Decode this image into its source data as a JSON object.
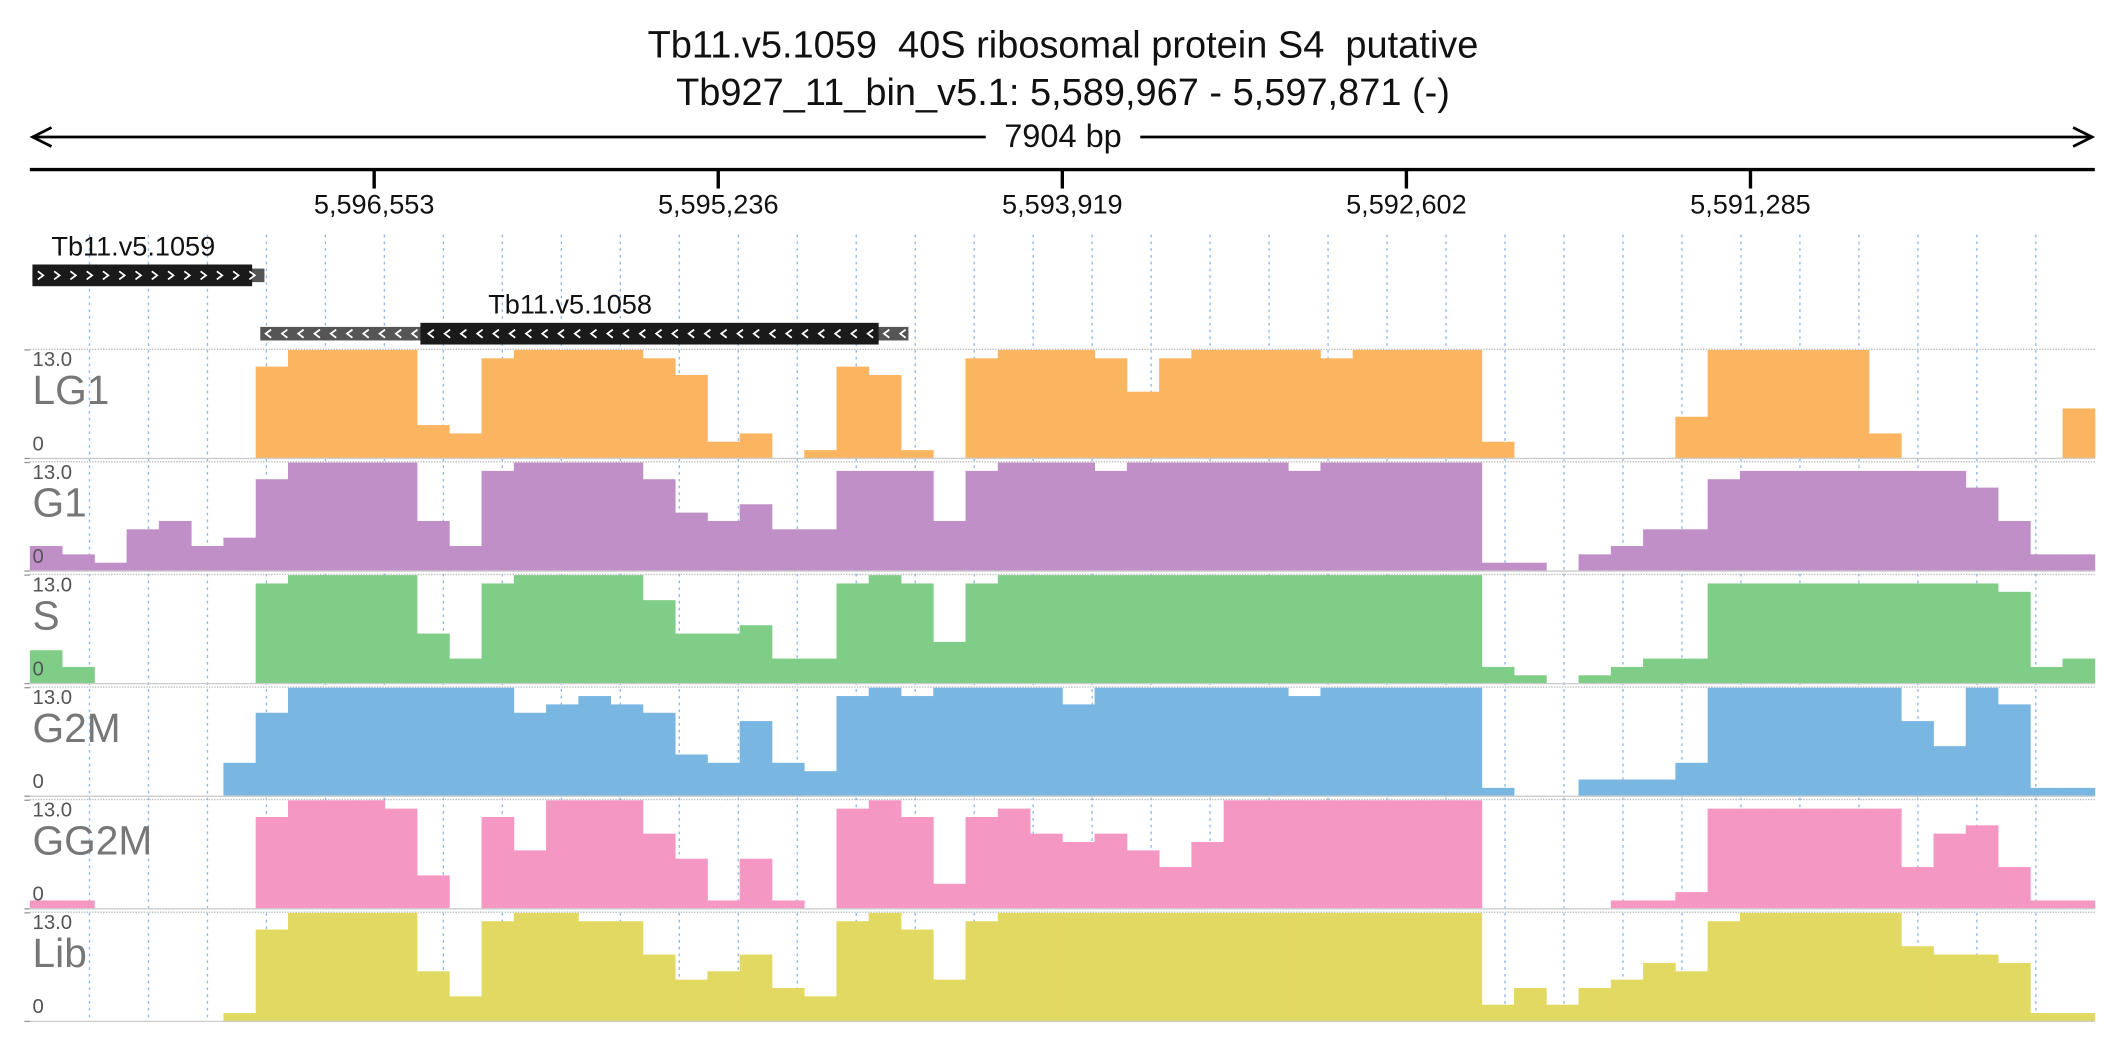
{
  "chart_data": {
    "type": "bar",
    "title": "Tb11.v5.1059  40S ribosomal protein S4  putative",
    "subtitle": "Tb927_11_bin_v5.1: 5,589,967 - 5,597,871 (-)",
    "span_label": "7904 bp",
    "xlim": [
      5597871,
      5589967
    ],
    "xticks": [
      {
        "value": 5596553,
        "label": "5,596,553"
      },
      {
        "value": 5595236,
        "label": "5,595,236"
      },
      {
        "value": 5593919,
        "label": "5,593,919"
      },
      {
        "value": 5592602,
        "label": "5,592,602"
      },
      {
        "value": 5591285,
        "label": "5,591,285"
      }
    ],
    "genes": [
      {
        "name": "Tb11.v5.1059",
        "start": 5597861,
        "end": 5596973,
        "thick_start": 5597861,
        "thick_end": 5597020,
        "strand": "+"
      },
      {
        "name": "Tb11.v5.1058",
        "start": 5596989,
        "end": 5594508,
        "thick_start": 5596376,
        "thick_end": 5594622,
        "strand": "-"
      }
    ],
    "ylim": [
      0,
      13
    ],
    "yticks": [
      0,
      {
        "value": 13,
        "label": "13.0"
      }
    ],
    "series": [
      {
        "name": "LG1",
        "color": "#fbb560",
        "values": [
          0,
          0,
          0,
          0,
          0,
          0,
          0,
          11,
          13,
          13,
          13,
          13,
          4,
          3,
          12,
          13,
          13,
          13,
          13,
          12,
          10,
          2,
          3,
          0,
          1,
          11,
          10,
          1,
          0,
          12,
          13,
          13,
          13,
          12,
          8,
          12,
          13,
          13,
          13,
          13,
          12,
          13,
          13,
          13,
          13,
          2,
          0,
          0,
          0,
          0,
          0,
          5,
          13,
          13,
          13,
          13,
          13,
          3,
          0,
          0,
          0,
          0,
          0,
          6
        ]
      },
      {
        "name": "G1",
        "color": "#c08fc7",
        "values": [
          3,
          2,
          1,
          5,
          6,
          3,
          4,
          11,
          13,
          13,
          13,
          13,
          6,
          3,
          12,
          13,
          13,
          13,
          13,
          11,
          7,
          6,
          8,
          5,
          5,
          12,
          12,
          12,
          6,
          12,
          13,
          13,
          13,
          12,
          13,
          13,
          13,
          13,
          13,
          12,
          13,
          13,
          13,
          13,
          13,
          1,
          1,
          0,
          2,
          3,
          5,
          5,
          11,
          12,
          12,
          12,
          12,
          12,
          12,
          12,
          10,
          6,
          2,
          2
        ]
      },
      {
        "name": "S",
        "color": "#7fcd86",
        "values": [
          4,
          2,
          0,
          0,
          0,
          0,
          0,
          12,
          13,
          13,
          13,
          13,
          6,
          3,
          12,
          13,
          13,
          13,
          13,
          10,
          6,
          6,
          7,
          3,
          3,
          12,
          13,
          12,
          5,
          12,
          13,
          13,
          13,
          13,
          13,
          13,
          13,
          13,
          13,
          13,
          13,
          13,
          13,
          13,
          13,
          2,
          1,
          0,
          1,
          2,
          3,
          3,
          12,
          12,
          12,
          12,
          12,
          12,
          12,
          12,
          12,
          11,
          2,
          3
        ]
      },
      {
        "name": "G2M",
        "color": "#7ab6e2",
        "values": [
          0,
          0,
          0,
          0,
          0,
          0,
          4,
          10,
          13,
          13,
          13,
          13,
          13,
          13,
          13,
          10,
          11,
          12,
          11,
          10,
          5,
          4,
          9,
          4,
          3,
          12,
          13,
          12,
          13,
          13,
          13,
          13,
          11,
          13,
          13,
          13,
          13,
          13,
          13,
          12,
          13,
          13,
          13,
          13,
          13,
          1,
          0,
          0,
          2,
          2,
          2,
          4,
          13,
          13,
          13,
          13,
          13,
          13,
          9,
          6,
          13,
          11,
          1,
          1
        ]
      },
      {
        "name": "GG2M",
        "color": "#f597c3",
        "values": [
          1,
          1,
          0,
          0,
          0,
          0,
          0,
          11,
          13,
          13,
          13,
          12,
          4,
          0,
          11,
          7,
          13,
          13,
          13,
          9,
          6,
          1,
          6,
          1,
          0,
          12,
          13,
          11,
          3,
          11,
          12,
          9,
          8,
          9,
          7,
          5,
          8,
          13,
          13,
          13,
          13,
          13,
          13,
          13,
          13,
          0,
          0,
          0,
          0,
          1,
          1,
          2,
          12,
          12,
          12,
          12,
          12,
          12,
          5,
          9,
          10,
          5,
          1,
          1
        ]
      },
      {
        "name": "Lib",
        "color": "#e2d963",
        "values": [
          0,
          0,
          0,
          0,
          0,
          0,
          1,
          11,
          13,
          13,
          13,
          13,
          6,
          3,
          12,
          13,
          13,
          12,
          12,
          8,
          5,
          6,
          8,
          4,
          3,
          12,
          13,
          11,
          5,
          12,
          13,
          13,
          13,
          13,
          13,
          13,
          13,
          13,
          13,
          13,
          13,
          13,
          13,
          13,
          13,
          2,
          4,
          2,
          4,
          5,
          7,
          6,
          12,
          13,
          13,
          13,
          13,
          13,
          9,
          8,
          8,
          7,
          1,
          1
        ]
      }
    ]
  }
}
